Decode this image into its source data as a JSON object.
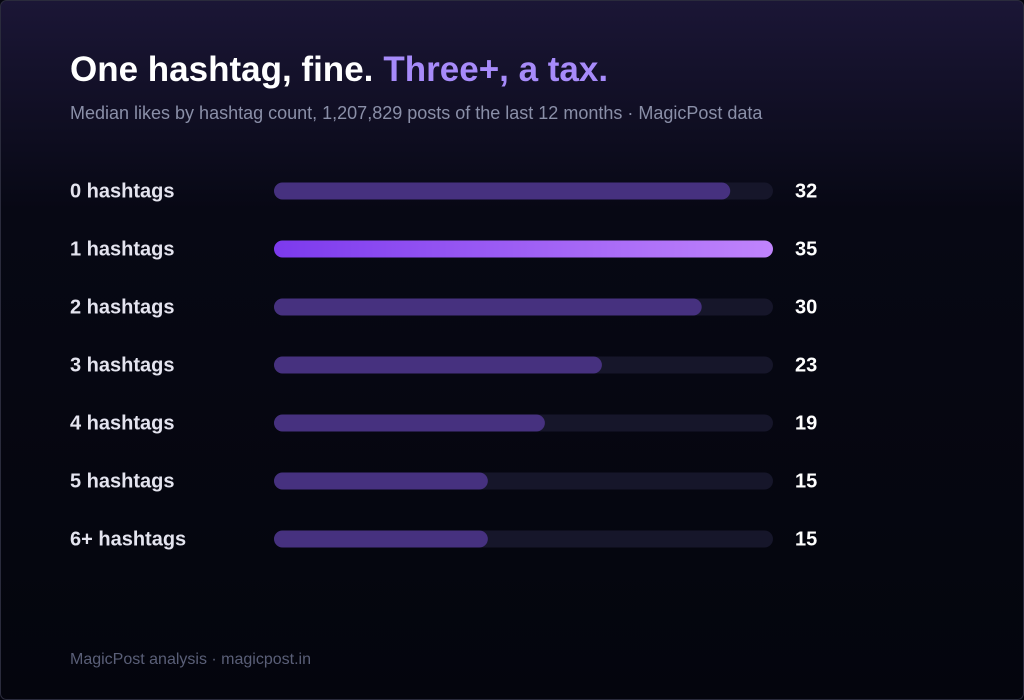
{
  "chart_data": {
    "type": "hbar",
    "title": "One hashtag, fine.",
    "title_accent": "Three+, a tax.",
    "title_accent_color": "#a78bfa",
    "subtitle": "Median likes by hashtag count, 1,207,829 posts of the last 12 months · MagicPost data",
    "categories": [
      "0 hashtags",
      "1 hashtags",
      "2 hashtags",
      "3 hashtags",
      "4 hashtags",
      "5 hashtags",
      "6+ hashtags"
    ],
    "values": [
      32,
      35,
      30,
      23,
      19,
      15,
      15
    ],
    "color": "#46317f",
    "track_color": "#16162a",
    "highlight_index": 1,
    "highlight_colors": [
      "#7c3aed",
      "#c084fc"
    ],
    "xlim": [
      0,
      35
    ],
    "footer": "MagicPost analysis · magicpost.in"
  }
}
